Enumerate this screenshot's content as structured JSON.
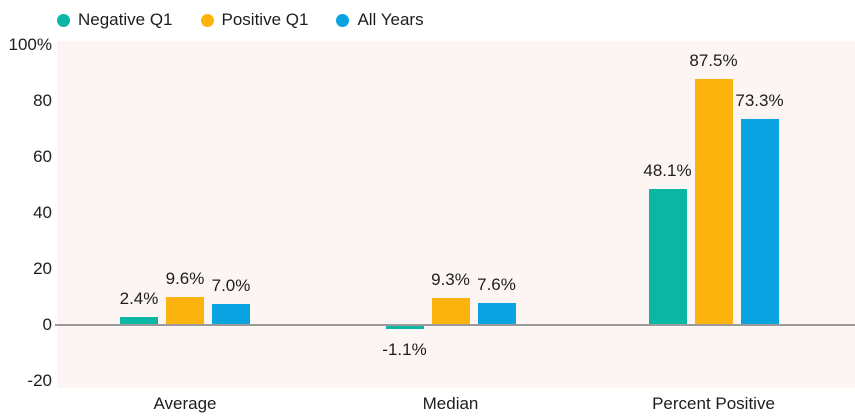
{
  "chart_data": {
    "type": "bar",
    "categories": [
      "Average",
      "Median",
      "Percent Positive"
    ],
    "series": [
      {
        "name": "Negative Q1",
        "color": "#0bb7a2",
        "values": [
          2.4,
          -1.1,
          48.1
        ],
        "value_labels": [
          "2.4%",
          "-1.1%",
          "48.1%"
        ]
      },
      {
        "name": "Positive Q1",
        "color": "#fcb30e",
        "values": [
          9.6,
          9.3,
          87.5
        ],
        "value_labels": [
          "9.6%",
          "9.3%",
          "87.5%"
        ]
      },
      {
        "name": "All Years",
        "color": "#09a3e2",
        "values": [
          7.0,
          7.6,
          73.3
        ],
        "value_labels": [
          "7.0%",
          "7.6%",
          "73.3%"
        ]
      }
    ],
    "ylim": [
      -20,
      100
    ],
    "yticks": [
      {
        "value": 100,
        "label": "100%"
      },
      {
        "value": 80,
        "label": "80"
      },
      {
        "value": 60,
        "label": "60"
      },
      {
        "value": 40,
        "label": "40"
      },
      {
        "value": 20,
        "label": "20"
      },
      {
        "value": 0,
        "label": "0"
      },
      {
        "value": -20,
        "label": "-20"
      }
    ],
    "grid": false,
    "legend_position": "top-left",
    "colors": {
      "plot_background": "#fcf5f4",
      "page_background": "#ffffff",
      "zero_line": "#9a9a9a",
      "text": "#1d1d1d"
    }
  }
}
